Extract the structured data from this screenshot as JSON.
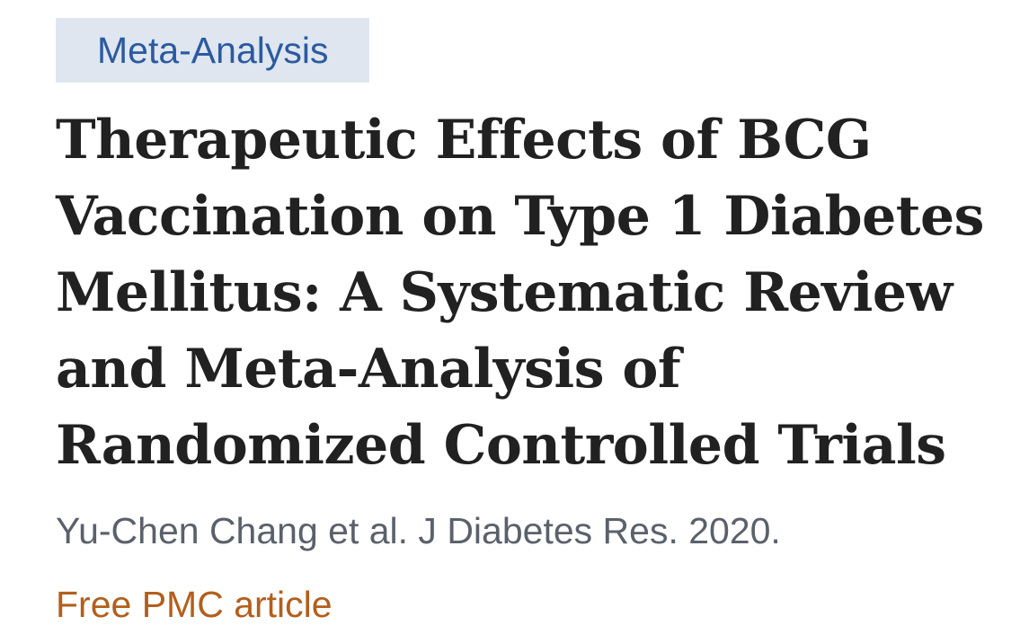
{
  "article": {
    "publication_type": "Meta-Analysis",
    "title_lines": [
      "Therapeutic Effects of BCG",
      "Vaccination on Type 1 Diabetes",
      "Mellitus: A Systematic Review",
      "and Meta-Analysis of",
      "Randomized Controlled Trials"
    ],
    "citation": "Yu-Chen Chang et al. J Diabetes Res. 2020.",
    "free_full_text_label": "Free PMC article"
  },
  "colors": {
    "tag_background": "#dfe6f0",
    "tag_text": "#2c5aa0",
    "title_text": "#212121",
    "citation_text": "#5b616b",
    "free_link_text": "#b25f1c"
  }
}
